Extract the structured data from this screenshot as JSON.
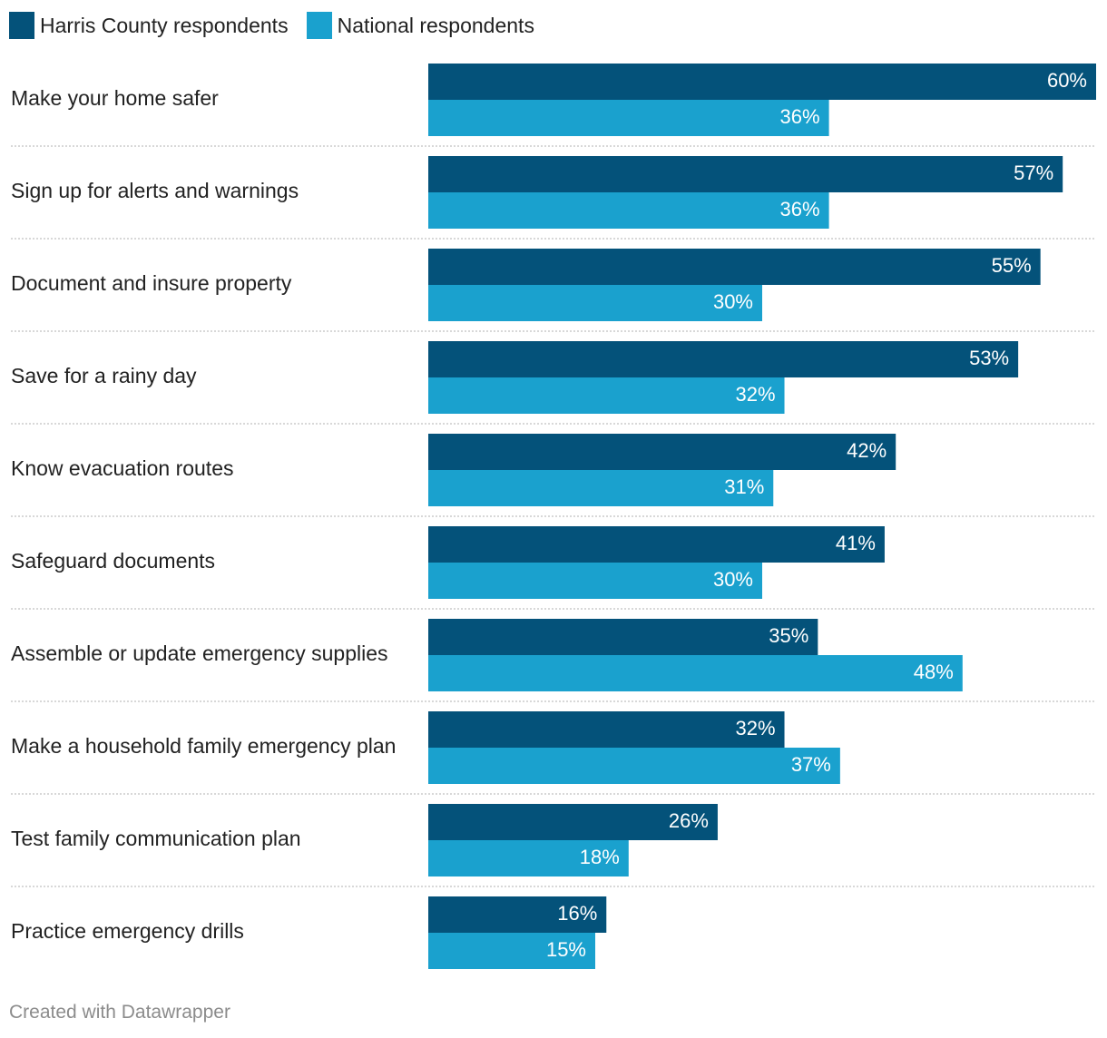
{
  "colors": {
    "harris": "#04527a",
    "national": "#1aa1ce",
    "separator": "#cccccc",
    "bar_label": "#ffffff",
    "category_text": "#222222",
    "footer_text": "#8c8c8c"
  },
  "legend": [
    {
      "label": "Harris County respondents",
      "color": "#04527a"
    },
    {
      "label": "National respondents",
      "color": "#1aa1ce"
    }
  ],
  "chart_data": {
    "type": "bar",
    "orientation": "horizontal",
    "title": "",
    "xlabel": "",
    "ylabel": "",
    "xlim": [
      0,
      60
    ],
    "grid": false,
    "legend_position": "top-left",
    "value_suffix": "%",
    "categories": [
      "Make your home safer",
      "Sign up for alerts and warnings",
      "Document and insure property",
      "Save for a rainy day",
      "Know evacuation routes",
      "Safeguard documents",
      "Assemble or update emergency supplies",
      "Make a household family emergency plan",
      "Test family communication plan",
      "Practice emergency drills"
    ],
    "series": [
      {
        "name": "Harris County respondents",
        "values": [
          60,
          57,
          55,
          53,
          42,
          41,
          35,
          32,
          26,
          16
        ]
      },
      {
        "name": "National respondents",
        "values": [
          36,
          36,
          30,
          32,
          31,
          30,
          48,
          37,
          18,
          15
        ]
      }
    ]
  },
  "footer": {
    "credit": "Created with Datawrapper"
  }
}
